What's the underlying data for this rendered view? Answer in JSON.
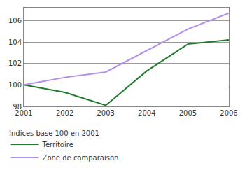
{
  "chart_data": {
    "type": "line",
    "categories": [
      "2001",
      "2002",
      "2003",
      "2004",
      "2005",
      "2006"
    ],
    "series": [
      {
        "name": "Territoire",
        "color": "#1f7a2e",
        "values": [
          100,
          99.3,
          98.1,
          101.3,
          103.8,
          104.2
        ]
      },
      {
        "name": "Zone de comparaison",
        "color": "#b28ef0",
        "values": [
          100,
          100.7,
          101.2,
          103.2,
          105.2,
          106.7
        ]
      }
    ],
    "annotations": [
      "Indices base 100 en 2001"
    ],
    "ylim": [
      98,
      107.2
    ],
    "yticks": [
      98,
      100,
      102,
      104,
      106
    ],
    "grid": true,
    "legend": "bottom"
  }
}
